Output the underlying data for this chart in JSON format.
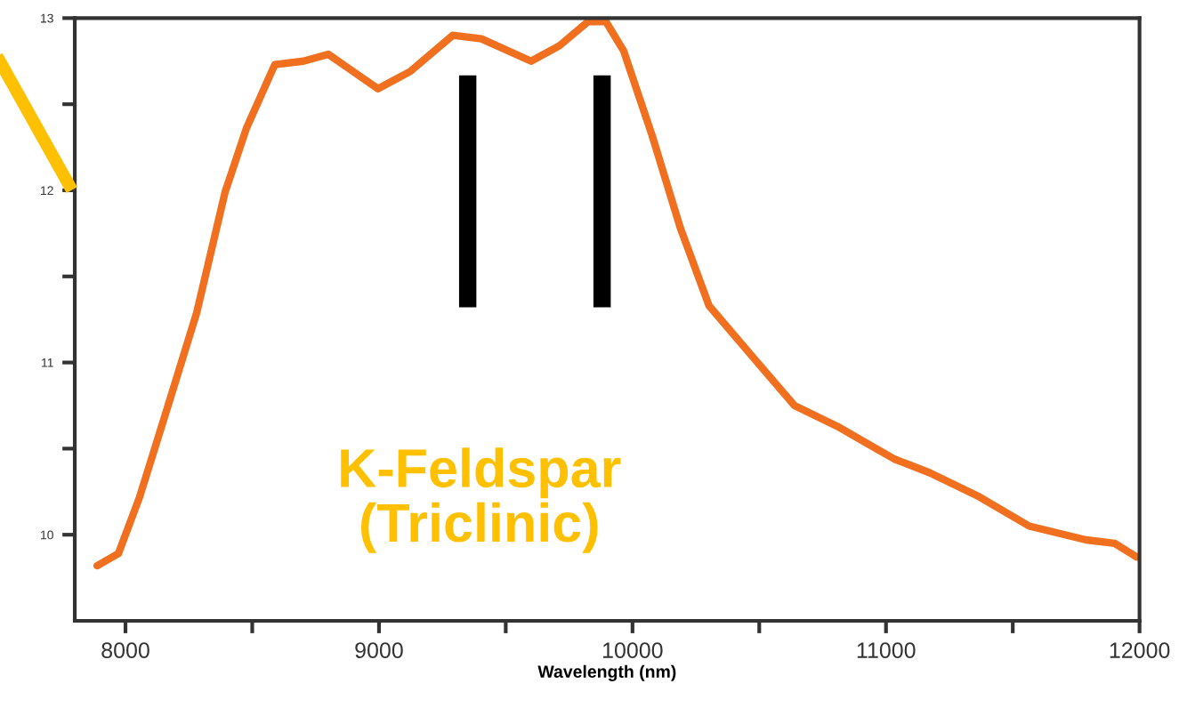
{
  "chart_data": {
    "type": "line",
    "xlabel": "Wavelength (nm)",
    "annotations": [
      "K-Feldspar\n(Triclinic)"
    ],
    "series": [
      {
        "color": "#f07020",
        "x": [
          7888,
          7972,
          8056,
          8168,
          8281,
          8393,
          8477,
          8589,
          8702,
          8800,
          8898,
          8996,
          9123,
          9291,
          9404,
          9600,
          9712,
          9825,
          9895,
          9965,
          10077,
          10189,
          10302,
          10470,
          10639,
          10807,
          11032,
          11172,
          11368,
          11565,
          11789,
          11902,
          11990
        ],
        "values": [
          9.82,
          9.89,
          10.22,
          10.75,
          11.29,
          11.99,
          12.36,
          12.73,
          12.75,
          12.79,
          12.69,
          12.59,
          12.69,
          12.9,
          12.88,
          12.75,
          12.84,
          12.98,
          12.98,
          12.81,
          12.32,
          11.78,
          11.33,
          11.04,
          10.75,
          10.63,
          10.44,
          10.36,
          10.22,
          10.05,
          9.97,
          9.95,
          9.87
        ]
      }
    ],
    "ref_lines": [
      {
        "axis": "x",
        "value": 9350,
        "color": "#000000"
      },
      {
        "axis": "x",
        "value": 9880,
        "color": "#000000"
      }
    ],
    "xlim": [
      7800,
      12000
    ],
    "xticks": [
      8000,
      {
        "value": 8500,
        "label": null
      },
      9000,
      {
        "value": 9500,
        "label": null
      },
      10000,
      {
        "value": 10500,
        "label": null
      },
      11000,
      {
        "value": 11500,
        "label": null
      },
      12000
    ],
    "ylim": [
      9.5,
      13
    ],
    "yticks": [
      10,
      {
        "value": 10.5,
        "label": null
      },
      11,
      {
        "value": 11.5,
        "label": null
      },
      12,
      {
        "value": 12.5,
        "label": null
      },
      13
    ],
    "grid": false,
    "legend": false,
    "marker": "none",
    "line_style": "solid"
  }
}
